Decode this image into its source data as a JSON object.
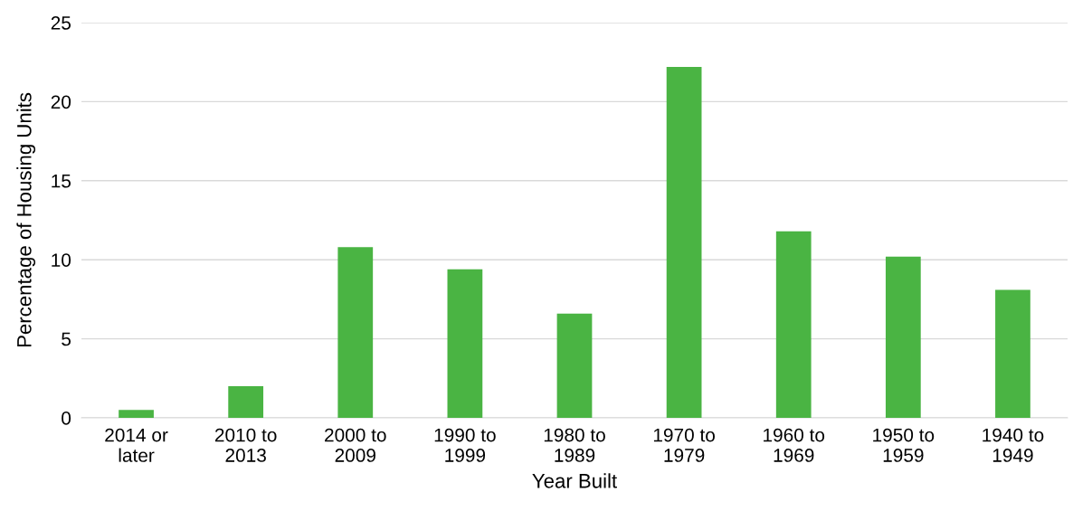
{
  "chart_data": {
    "type": "bar",
    "xlabel": "Year Built",
    "ylabel": "Percentage of Housing Units",
    "categories": [
      "2014 or\nlater",
      "2010 to\n2013",
      "2000 to\n2009",
      "1990 to\n1999",
      "1980 to\n1989",
      "1970 to\n1979",
      "1960 to\n1969",
      "1950 to\n1959",
      "1940 to\n1949"
    ],
    "values": [
      0.5,
      2.0,
      10.8,
      9.4,
      6.6,
      22.2,
      11.8,
      10.2,
      8.1
    ],
    "color": "#4ab443",
    "ylim": [
      0,
      25
    ],
    "yticks": [
      0,
      5,
      10,
      15,
      20,
      25
    ],
    "grid": "y",
    "legend": false
  }
}
